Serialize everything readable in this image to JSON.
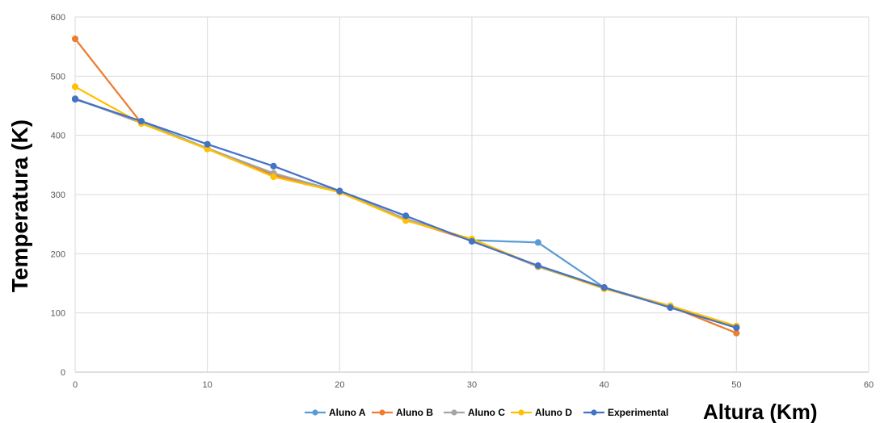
{
  "chart_data": {
    "type": "line",
    "title": "",
    "xlabel": "Altura (Km)",
    "ylabel": "Temperatura (K)",
    "xlim": [
      0,
      60
    ],
    "ylim": [
      0,
      600
    ],
    "xticks": [
      0,
      10,
      20,
      30,
      40,
      50,
      60
    ],
    "yticks": [
      0,
      100,
      200,
      300,
      400,
      500,
      600
    ],
    "grid": true,
    "legend_position": "bottom",
    "series": [
      {
        "name": "Aluno A",
        "color": "#5B9BD5",
        "x": [
          0,
          5,
          10,
          15,
          20,
          25,
          30,
          35,
          40,
          45,
          50
        ],
        "y": [
          462,
          423,
          378,
          335,
          305,
          258,
          223,
          219,
          143,
          111,
          76
        ]
      },
      {
        "name": "Aluno B",
        "color": "#ED7D31",
        "x": [
          0,
          5,
          10,
          15,
          20,
          25,
          30,
          35,
          40,
          45,
          50
        ],
        "y": [
          563,
          421,
          377,
          333,
          304,
          257,
          222,
          179,
          141,
          111,
          66
        ]
      },
      {
        "name": "Aluno C",
        "color": "#A5A5A5",
        "x": [
          0,
          5,
          10,
          15,
          20,
          25,
          30,
          35,
          40,
          45,
          50
        ],
        "y": [
          462,
          421,
          378,
          336,
          305,
          259,
          223,
          178,
          142,
          112,
          77
        ]
      },
      {
        "name": "Aluno D",
        "color": "#FFC000",
        "x": [
          0,
          5,
          10,
          15,
          20,
          25,
          30,
          35,
          40,
          45,
          50
        ],
        "y": [
          482,
          420,
          377,
          330,
          304,
          256,
          225,
          179,
          141,
          112,
          78
        ]
      },
      {
        "name": "Experimental",
        "color": "#4472C4",
        "x": [
          0,
          5,
          10,
          15,
          20,
          25,
          30,
          35,
          40,
          45,
          50
        ],
        "y": [
          461,
          424,
          385,
          348,
          306,
          264,
          221,
          180,
          143,
          109,
          75
        ]
      }
    ]
  }
}
